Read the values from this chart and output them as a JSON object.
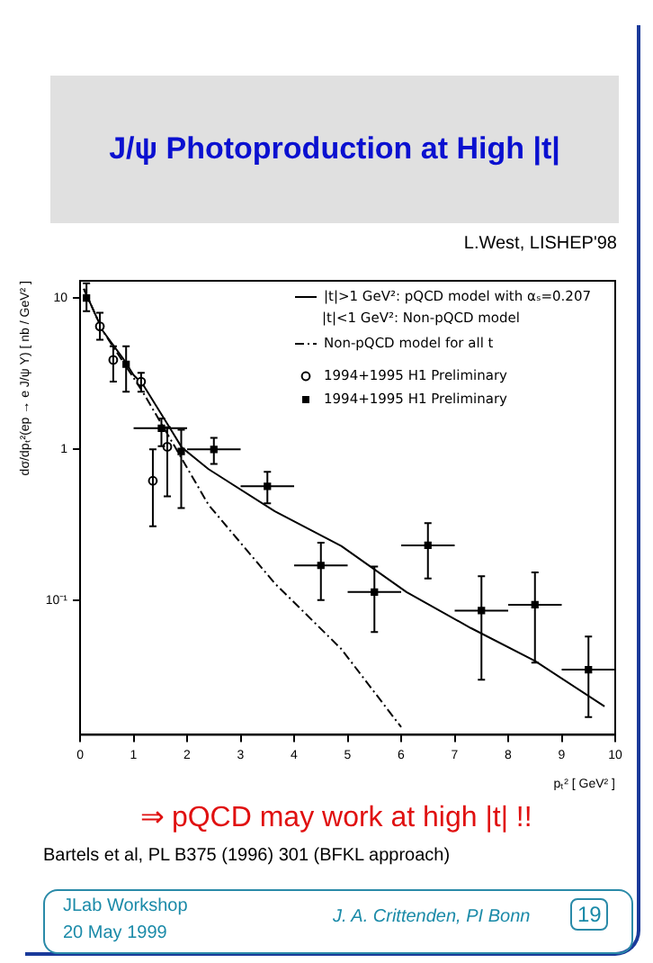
{
  "chart_data": {
    "type": "scatter",
    "title": "J/ψ Photoproduction at High |t|",
    "xlabel": "pₜ² [ GeV² ]",
    "ylabel": "dσ/dpₜ²(ep → e J/ψ Y) [ nb / GeV² ]",
    "annotations": [
      "L.West, LISHEP'98",
      "⇒ pQCD may work at high |t| !!",
      "Bartels et al, PL B375 (1996) 301   (BFKL approach)",
      "JLab Workshop",
      "20 May 1999",
      "J. A. Crittenden, PI Bonn",
      "19",
      "|t|<1 GeV²: Non-pQCD model"
    ],
    "xlim": [
      0,
      10
    ],
    "xticks": [
      0,
      1,
      2,
      3,
      4,
      5,
      6,
      7,
      8,
      9,
      10
    ],
    "ylim": [
      0.013,
      13
    ],
    "yticks": [
      {
        "value": 10,
        "label": "10"
      },
      {
        "value": 1,
        "label": "1"
      },
      {
        "value": 0.1,
        "label": "10⁻¹"
      }
    ],
    "log": "y",
    "legend": "top right",
    "series": [
      {
        "type": "line",
        "name": "|t|>1 GeV²: pQCD model with αₛ=0.207",
        "color": "#000000",
        "line_style": "solid",
        "x": [
          0.07,
          0.42,
          0.8,
          1.0,
          1.17,
          1.67,
          1.9,
          2.4,
          3.64,
          4.88,
          6.1,
          7.3,
          8.5,
          9.8
        ],
        "values": [
          11.5,
          6.1,
          4.0,
          3.1,
          2.7,
          1.4,
          1.03,
          0.74,
          0.39,
          0.23,
          0.114,
          0.066,
          0.04,
          0.02
        ]
      },
      {
        "type": "line",
        "name": "Non-pQCD model for all t",
        "color": "#000000",
        "line_style": "dashed",
        "x": [
          0.07,
          0.42,
          1.17,
          1.8,
          2.4,
          3.64,
          4.88,
          6.0
        ],
        "values": [
          11.5,
          6.1,
          2.4,
          1.0,
          0.43,
          0.13,
          0.048,
          0.0146
        ]
      },
      {
        "type": "scatter",
        "name": "1994+1995 H1 Preliminary",
        "color": "#000000",
        "marker": "circle",
        "x": [
          0.37,
          0.62,
          1.14,
          1.36,
          1.63
        ],
        "values": [
          6.5,
          3.9,
          2.8,
          0.62,
          1.04
        ],
        "errors": [
          [
            5.3,
            8.0
          ],
          [
            2.8,
            4.8
          ],
          [
            2.4,
            3.2
          ],
          [
            0.31,
            1.0
          ],
          [
            0.49,
            1.4
          ]
        ]
      },
      {
        "type": "scatter",
        "name": "1994+1995 H1 Preliminary",
        "color": "#000000",
        "marker": "square",
        "x": [
          0.12,
          0.86,
          1.52,
          1.89,
          2.5,
          3.5,
          4.5,
          5.5,
          6.5,
          7.5,
          8.5,
          9.5
        ],
        "values": [
          10,
          3.65,
          1.38,
          0.97,
          1.0,
          0.57,
          0.171,
          0.114,
          0.232,
          0.086,
          0.094,
          0.035
        ],
        "errors": [
          [
            8.2,
            12.5
          ],
          [
            2.4,
            4.8
          ],
          [
            1.05,
            1.6
          ],
          [
            0.41,
            1.35
          ],
          [
            0.8,
            1.19
          ],
          [
            0.44,
            0.71
          ],
          [
            0.101,
            0.242
          ],
          [
            0.062,
            0.168
          ],
          [
            0.14,
            0.325
          ],
          [
            0.03,
            0.145
          ],
          [
            0.039,
            0.154
          ],
          [
            0.017,
            0.058
          ]
        ],
        "xerrors": [
          null,
          null,
          [
            1.0,
            2.0
          ],
          null,
          [
            2.0,
            3.0
          ],
          0.5,
          0.5,
          0.5,
          0.5,
          0.5,
          0.5,
          0.5
        ]
      }
    ]
  }
}
